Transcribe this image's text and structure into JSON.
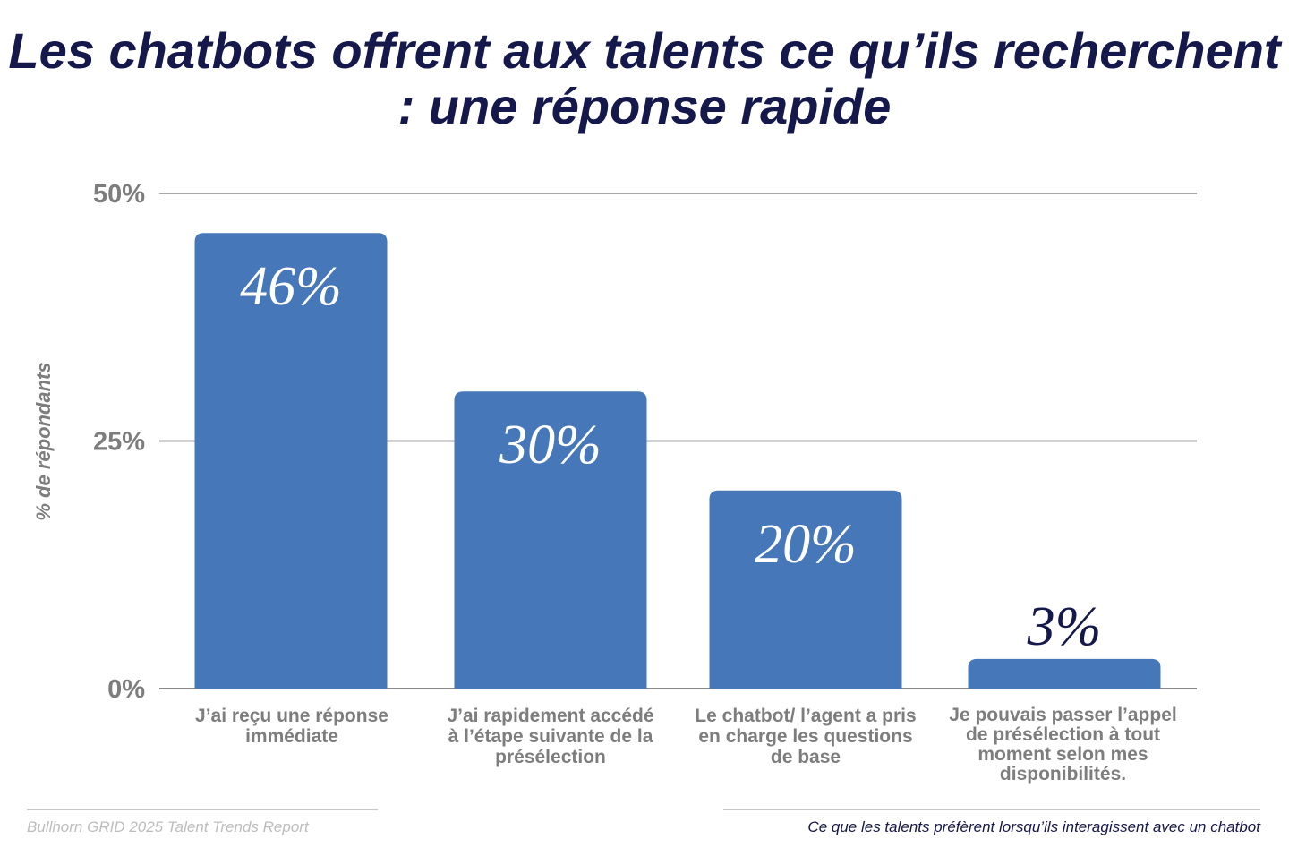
{
  "title": "Les chatbots offrent aux talents ce qu’ils recherchent : une réponse rapide",
  "colors": {
    "bar": "#4677b8",
    "title": "#14184a",
    "axis_text": "#7d7d7d",
    "grid": "#a8a8a8"
  },
  "chart_data": {
    "type": "bar",
    "title": "Les chatbots offrent aux talents ce qu’ils recherchent : une réponse rapide",
    "ylabel": "% de répondants",
    "xlabel": "",
    "ylim": [
      0,
      50
    ],
    "yticks": [
      "0%",
      "25%",
      "50%"
    ],
    "grid": true,
    "categories": [
      "J’ai reçu une réponse immédiate",
      "J’ai rapidement accédé à l’étape suivante de la présélection",
      "Le chatbot/ l’agent a pris en charge les questions de base",
      "Je pouvais passer l’appel de présélection à tout moment selon mes disponibilités."
    ],
    "values": [
      46,
      30,
      20,
      3
    ],
    "data_labels": [
      "46%",
      "30%",
      "20%",
      "3%"
    ]
  },
  "footer": {
    "source": "Bullhorn GRID 2025 Talent Trends Report",
    "caption": "Ce que les talents préfèrent lorsqu’ils interagissent avec un chatbot"
  }
}
